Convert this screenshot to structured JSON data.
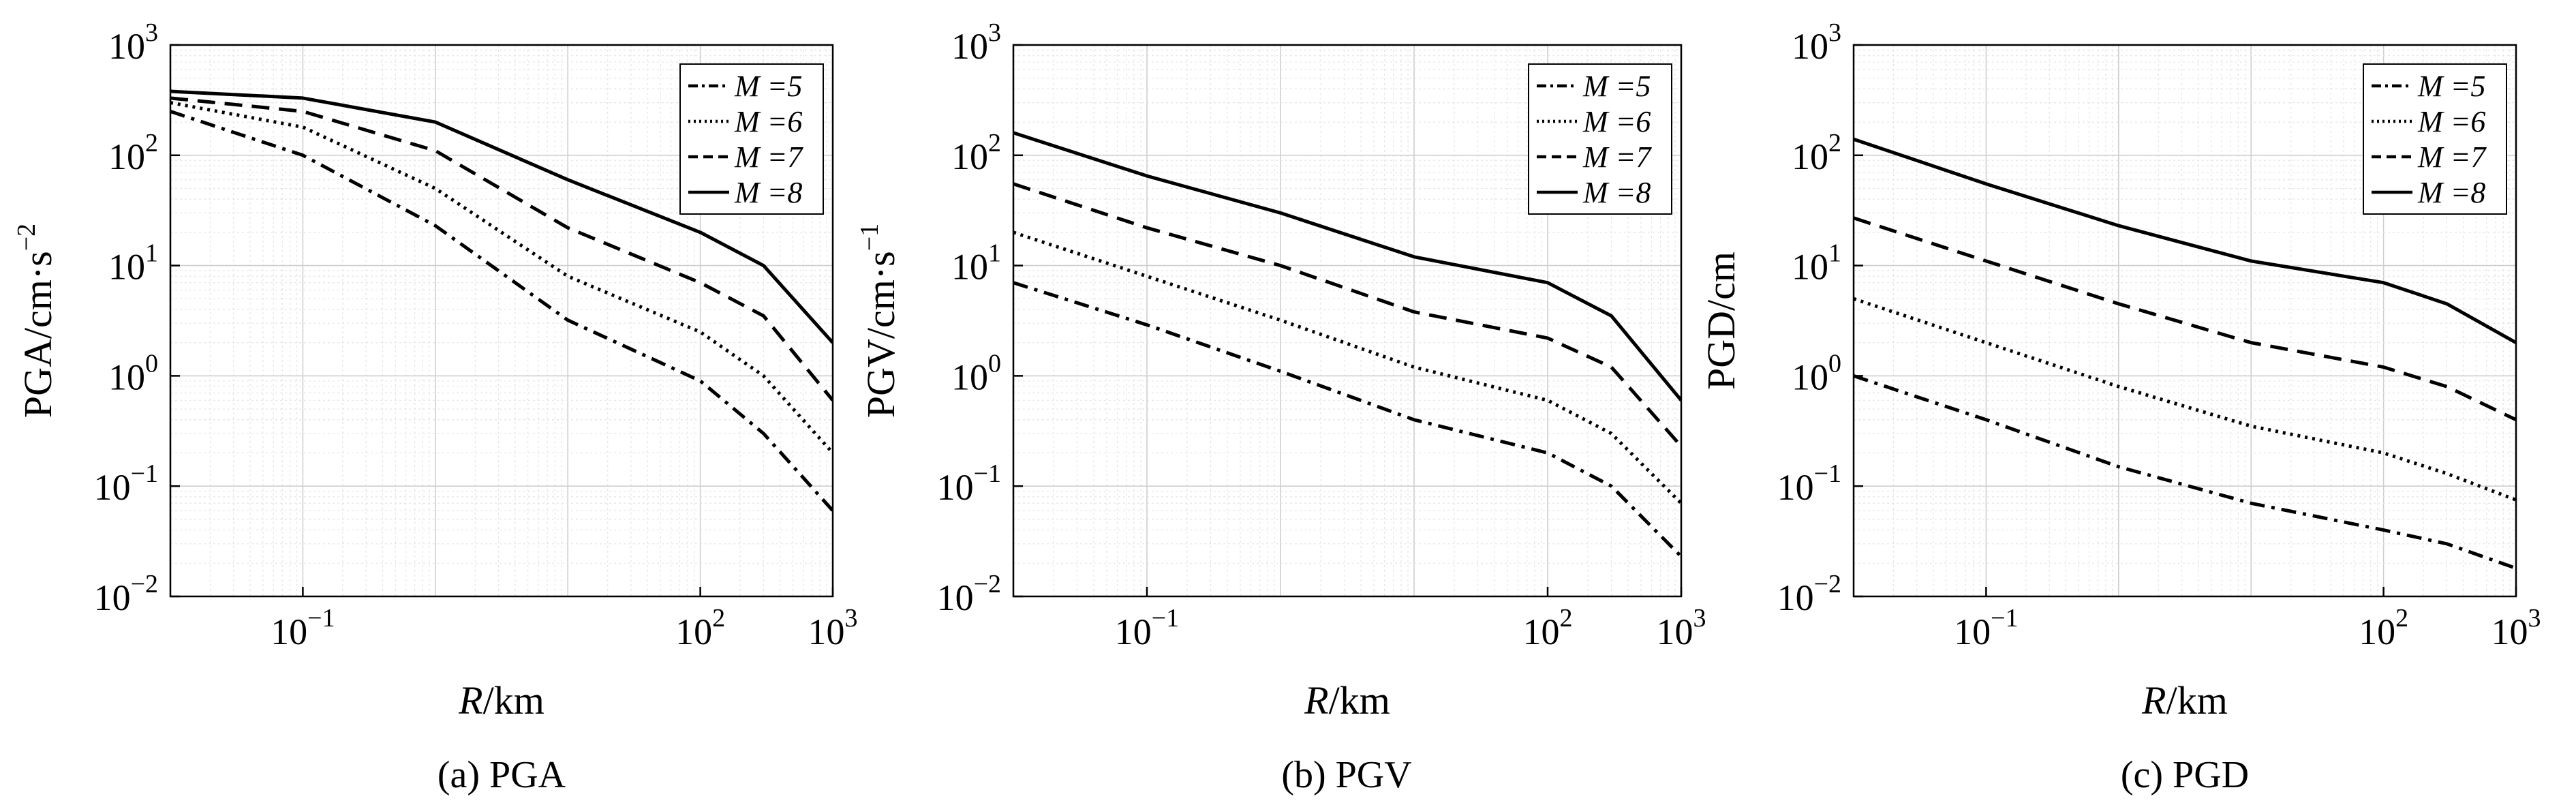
{
  "chart_data": [
    {
      "type": "line",
      "caption": "(a) PGA",
      "xlabel": {
        "italic": "R",
        "rest": "/km"
      },
      "ylabel": "PGA/cm·s",
      "ylabel_sup": "−2",
      "x_scale": "log",
      "y_scale": "log",
      "xlim": [
        0.01,
        1000
      ],
      "ylim": [
        0.01,
        1000
      ],
      "grid": true,
      "legend_position": "top-right",
      "x_ticks": [
        {
          "base": "10",
          "exp": "−1",
          "value": 0.1
        },
        {
          "base": "10",
          "exp": "2",
          "value": 100
        },
        {
          "base": "10",
          "exp": "3",
          "value": 1000
        }
      ],
      "y_ticks": [
        {
          "base": "10",
          "exp": "−2",
          "value": 0.01
        },
        {
          "base": "10",
          "exp": "−1",
          "value": 0.1
        },
        {
          "base": "10",
          "exp": "0",
          "value": 1
        },
        {
          "base": "10",
          "exp": "1",
          "value": 10
        },
        {
          "base": "10",
          "exp": "2",
          "value": 100
        },
        {
          "base": "10",
          "exp": "3",
          "value": 1000
        }
      ],
      "series": [
        {
          "name": "M =5",
          "style": "dashdot",
          "points": [
            [
              0.01,
              250
            ],
            [
              0.1,
              100
            ],
            [
              1,
              23
            ],
            [
              10,
              3.2
            ],
            [
              100,
              0.9
            ],
            [
              300,
              0.3
            ],
            [
              1000,
              0.06
            ]
          ]
        },
        {
          "name": "M =6",
          "style": "dotted",
          "points": [
            [
              0.01,
              300
            ],
            [
              0.1,
              180
            ],
            [
              1,
              50
            ],
            [
              10,
              8
            ],
            [
              100,
              2.5
            ],
            [
              300,
              1.0
            ],
            [
              1000,
              0.2
            ]
          ]
        },
        {
          "name": "M =7",
          "style": "dashed",
          "points": [
            [
              0.01,
              330
            ],
            [
              0.1,
              250
            ],
            [
              1,
              110
            ],
            [
              10,
              22
            ],
            [
              100,
              7
            ],
            [
              300,
              3.5
            ],
            [
              1000,
              0.6
            ]
          ]
        },
        {
          "name": "M =8",
          "style": "solid",
          "points": [
            [
              0.01,
              380
            ],
            [
              0.1,
              330
            ],
            [
              1,
              200
            ],
            [
              10,
              60
            ],
            [
              100,
              20
            ],
            [
              300,
              10
            ],
            [
              1000,
              2
            ]
          ]
        }
      ]
    },
    {
      "type": "line",
      "caption": "(b) PGV",
      "xlabel": {
        "italic": "R",
        "rest": "/km"
      },
      "ylabel": "PGV/cm·s",
      "ylabel_sup": "−1",
      "x_scale": "log",
      "y_scale": "log",
      "xlim": [
        0.01,
        1000
      ],
      "ylim": [
        0.01,
        1000
      ],
      "grid": true,
      "legend_position": "top-right",
      "x_ticks": [
        {
          "base": "10",
          "exp": "−1",
          "value": 0.1
        },
        {
          "base": "10",
          "exp": "2",
          "value": 100
        },
        {
          "base": "10",
          "exp": "3",
          "value": 1000
        }
      ],
      "y_ticks": [
        {
          "base": "10",
          "exp": "−2",
          "value": 0.01
        },
        {
          "base": "10",
          "exp": "−1",
          "value": 0.1
        },
        {
          "base": "10",
          "exp": "0",
          "value": 1
        },
        {
          "base": "10",
          "exp": "1",
          "value": 10
        },
        {
          "base": "10",
          "exp": "2",
          "value": 100
        },
        {
          "base": "10",
          "exp": "3",
          "value": 1000
        }
      ],
      "series": [
        {
          "name": "M =5",
          "style": "dashdot",
          "points": [
            [
              0.01,
              7
            ],
            [
              0.1,
              2.9
            ],
            [
              1,
              1.1
            ],
            [
              10,
              0.4
            ],
            [
              100,
              0.2
            ],
            [
              300,
              0.1
            ],
            [
              1000,
              0.023
            ]
          ]
        },
        {
          "name": "M =6",
          "style": "dotted",
          "points": [
            [
              0.01,
              20
            ],
            [
              0.1,
              8
            ],
            [
              1,
              3.2
            ],
            [
              10,
              1.2
            ],
            [
              100,
              0.6
            ],
            [
              300,
              0.3
            ],
            [
              1000,
              0.07
            ]
          ]
        },
        {
          "name": "M =7",
          "style": "dashed",
          "points": [
            [
              0.01,
              55
            ],
            [
              0.1,
              22
            ],
            [
              1,
              10
            ],
            [
              10,
              3.8
            ],
            [
              100,
              2.2
            ],
            [
              300,
              1.2
            ],
            [
              1000,
              0.23
            ]
          ]
        },
        {
          "name": "M =8",
          "style": "solid",
          "points": [
            [
              0.01,
              160
            ],
            [
              0.1,
              65
            ],
            [
              1,
              30
            ],
            [
              10,
              12
            ],
            [
              100,
              7
            ],
            [
              300,
              3.5
            ],
            [
              1000,
              0.6
            ]
          ]
        }
      ]
    },
    {
      "type": "line",
      "caption": "(c) PGD",
      "xlabel": {
        "italic": "R",
        "rest": "/km"
      },
      "ylabel": "PGD/cm",
      "ylabel_sup": "",
      "x_scale": "log",
      "y_scale": "log",
      "xlim": [
        0.01,
        1000
      ],
      "ylim": [
        0.01,
        1000
      ],
      "grid": true,
      "legend_position": "top-right",
      "x_ticks": [
        {
          "base": "10",
          "exp": "−1",
          "value": 0.1
        },
        {
          "base": "10",
          "exp": "2",
          "value": 100
        },
        {
          "base": "10",
          "exp": "3",
          "value": 1000
        }
      ],
      "y_ticks": [
        {
          "base": "10",
          "exp": "−2",
          "value": 0.01
        },
        {
          "base": "10",
          "exp": "−1",
          "value": 0.1
        },
        {
          "base": "10",
          "exp": "0",
          "value": 1
        },
        {
          "base": "10",
          "exp": "1",
          "value": 10
        },
        {
          "base": "10",
          "exp": "2",
          "value": 100
        },
        {
          "base": "10",
          "exp": "3",
          "value": 1000
        }
      ],
      "series": [
        {
          "name": "M =5",
          "style": "dashdot",
          "points": [
            [
              0.01,
              1
            ],
            [
              0.1,
              0.4
            ],
            [
              1,
              0.15
            ],
            [
              10,
              0.07
            ],
            [
              100,
              0.04
            ],
            [
              300,
              0.03
            ],
            [
              1000,
              0.018
            ]
          ]
        },
        {
          "name": "M =6",
          "style": "dotted",
          "points": [
            [
              0.01,
              5
            ],
            [
              0.1,
              2
            ],
            [
              1,
              0.8
            ],
            [
              10,
              0.35
            ],
            [
              100,
              0.2
            ],
            [
              300,
              0.13
            ],
            [
              1000,
              0.075
            ]
          ]
        },
        {
          "name": "M =7",
          "style": "dashed",
          "points": [
            [
              0.01,
              27
            ],
            [
              0.1,
              11
            ],
            [
              1,
              4.5
            ],
            [
              10,
              2
            ],
            [
              100,
              1.2
            ],
            [
              300,
              0.8
            ],
            [
              1000,
              0.4
            ]
          ]
        },
        {
          "name": "M =8",
          "style": "solid",
          "points": [
            [
              0.01,
              140
            ],
            [
              0.1,
              55
            ],
            [
              1,
              23
            ],
            [
              10,
              11
            ],
            [
              100,
              7
            ],
            [
              300,
              4.5
            ],
            [
              1000,
              2
            ]
          ]
        }
      ]
    }
  ]
}
